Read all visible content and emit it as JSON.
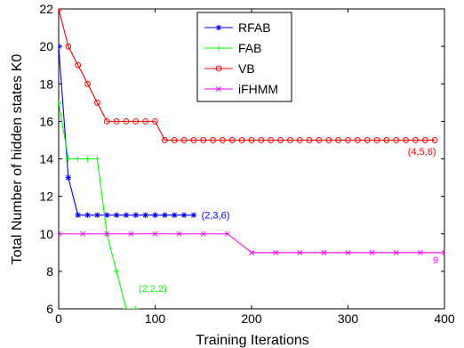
{
  "chart_data": {
    "type": "line",
    "title": "",
    "xlabel": "Training Iterations",
    "ylabel": "Total Number of hidden states K0",
    "xlim": [
      0,
      400
    ],
    "ylim": [
      6,
      22
    ],
    "xticks": [
      0,
      100,
      200,
      300,
      400
    ],
    "yticks": [
      6,
      8,
      10,
      12,
      14,
      16,
      18,
      20,
      22
    ],
    "grid": false,
    "legend_position": "top-right",
    "series": [
      {
        "name": "RFAB",
        "color": "#0000ff",
        "marker": "asterisk",
        "x": [
          0,
          10,
          20,
          30,
          40,
          50,
          60,
          70,
          80,
          90,
          100,
          110,
          120,
          130,
          140
        ],
        "y": [
          20,
          13,
          11,
          11,
          11,
          11,
          11,
          11,
          11,
          11,
          11,
          11,
          11,
          11,
          11
        ]
      },
      {
        "name": "FAB",
        "color": "#00ff00",
        "marker": "plus",
        "x": [
          0,
          10,
          20,
          30,
          40,
          50,
          60,
          70,
          80
        ],
        "y": [
          17,
          14,
          14,
          14,
          14,
          10,
          8,
          6,
          6
        ]
      },
      {
        "name": "VB",
        "color": "#ff0000",
        "marker": "circle",
        "x": [
          0,
          10,
          20,
          30,
          40,
          50,
          60,
          70,
          80,
          90,
          100,
          110,
          120,
          130,
          140,
          150,
          160,
          170,
          180,
          190,
          200,
          210,
          220,
          230,
          240,
          250,
          260,
          270,
          280,
          290,
          300,
          310,
          320,
          330,
          340,
          350,
          360,
          370,
          380,
          390
        ],
        "y": [
          22,
          20,
          19,
          18,
          17,
          16,
          16,
          16,
          16,
          16,
          16,
          15,
          15,
          15,
          15,
          15,
          15,
          15,
          15,
          15,
          15,
          15,
          15,
          15,
          15,
          15,
          15,
          15,
          15,
          15,
          15,
          15,
          15,
          15,
          15,
          15,
          15,
          15,
          15,
          15
        ]
      },
      {
        "name": "iFHMM",
        "color": "#ff00ff",
        "marker": "x",
        "x": [
          0,
          25,
          50,
          75,
          100,
          125,
          150,
          175,
          200,
          225,
          250,
          275,
          300,
          325,
          350,
          375,
          400
        ],
        "y": [
          10,
          10,
          10,
          10,
          10,
          10,
          10,
          10,
          9,
          9,
          9,
          9,
          9,
          9,
          9,
          9,
          9
        ]
      }
    ],
    "annotations": [
      {
        "text": "(2,3,6)",
        "x": 148,
        "y": 11,
        "color": "#0000ff"
      },
      {
        "text": "(2,2,2)",
        "x": 83,
        "y": 7.1,
        "color": "#00ff00"
      },
      {
        "text": "(4,5,6)",
        "x": 362,
        "y": 14.4,
        "color": "#ff0000"
      },
      {
        "text": "9",
        "x": 388,
        "y": 8.6,
        "color": "#ff00ff"
      }
    ]
  }
}
